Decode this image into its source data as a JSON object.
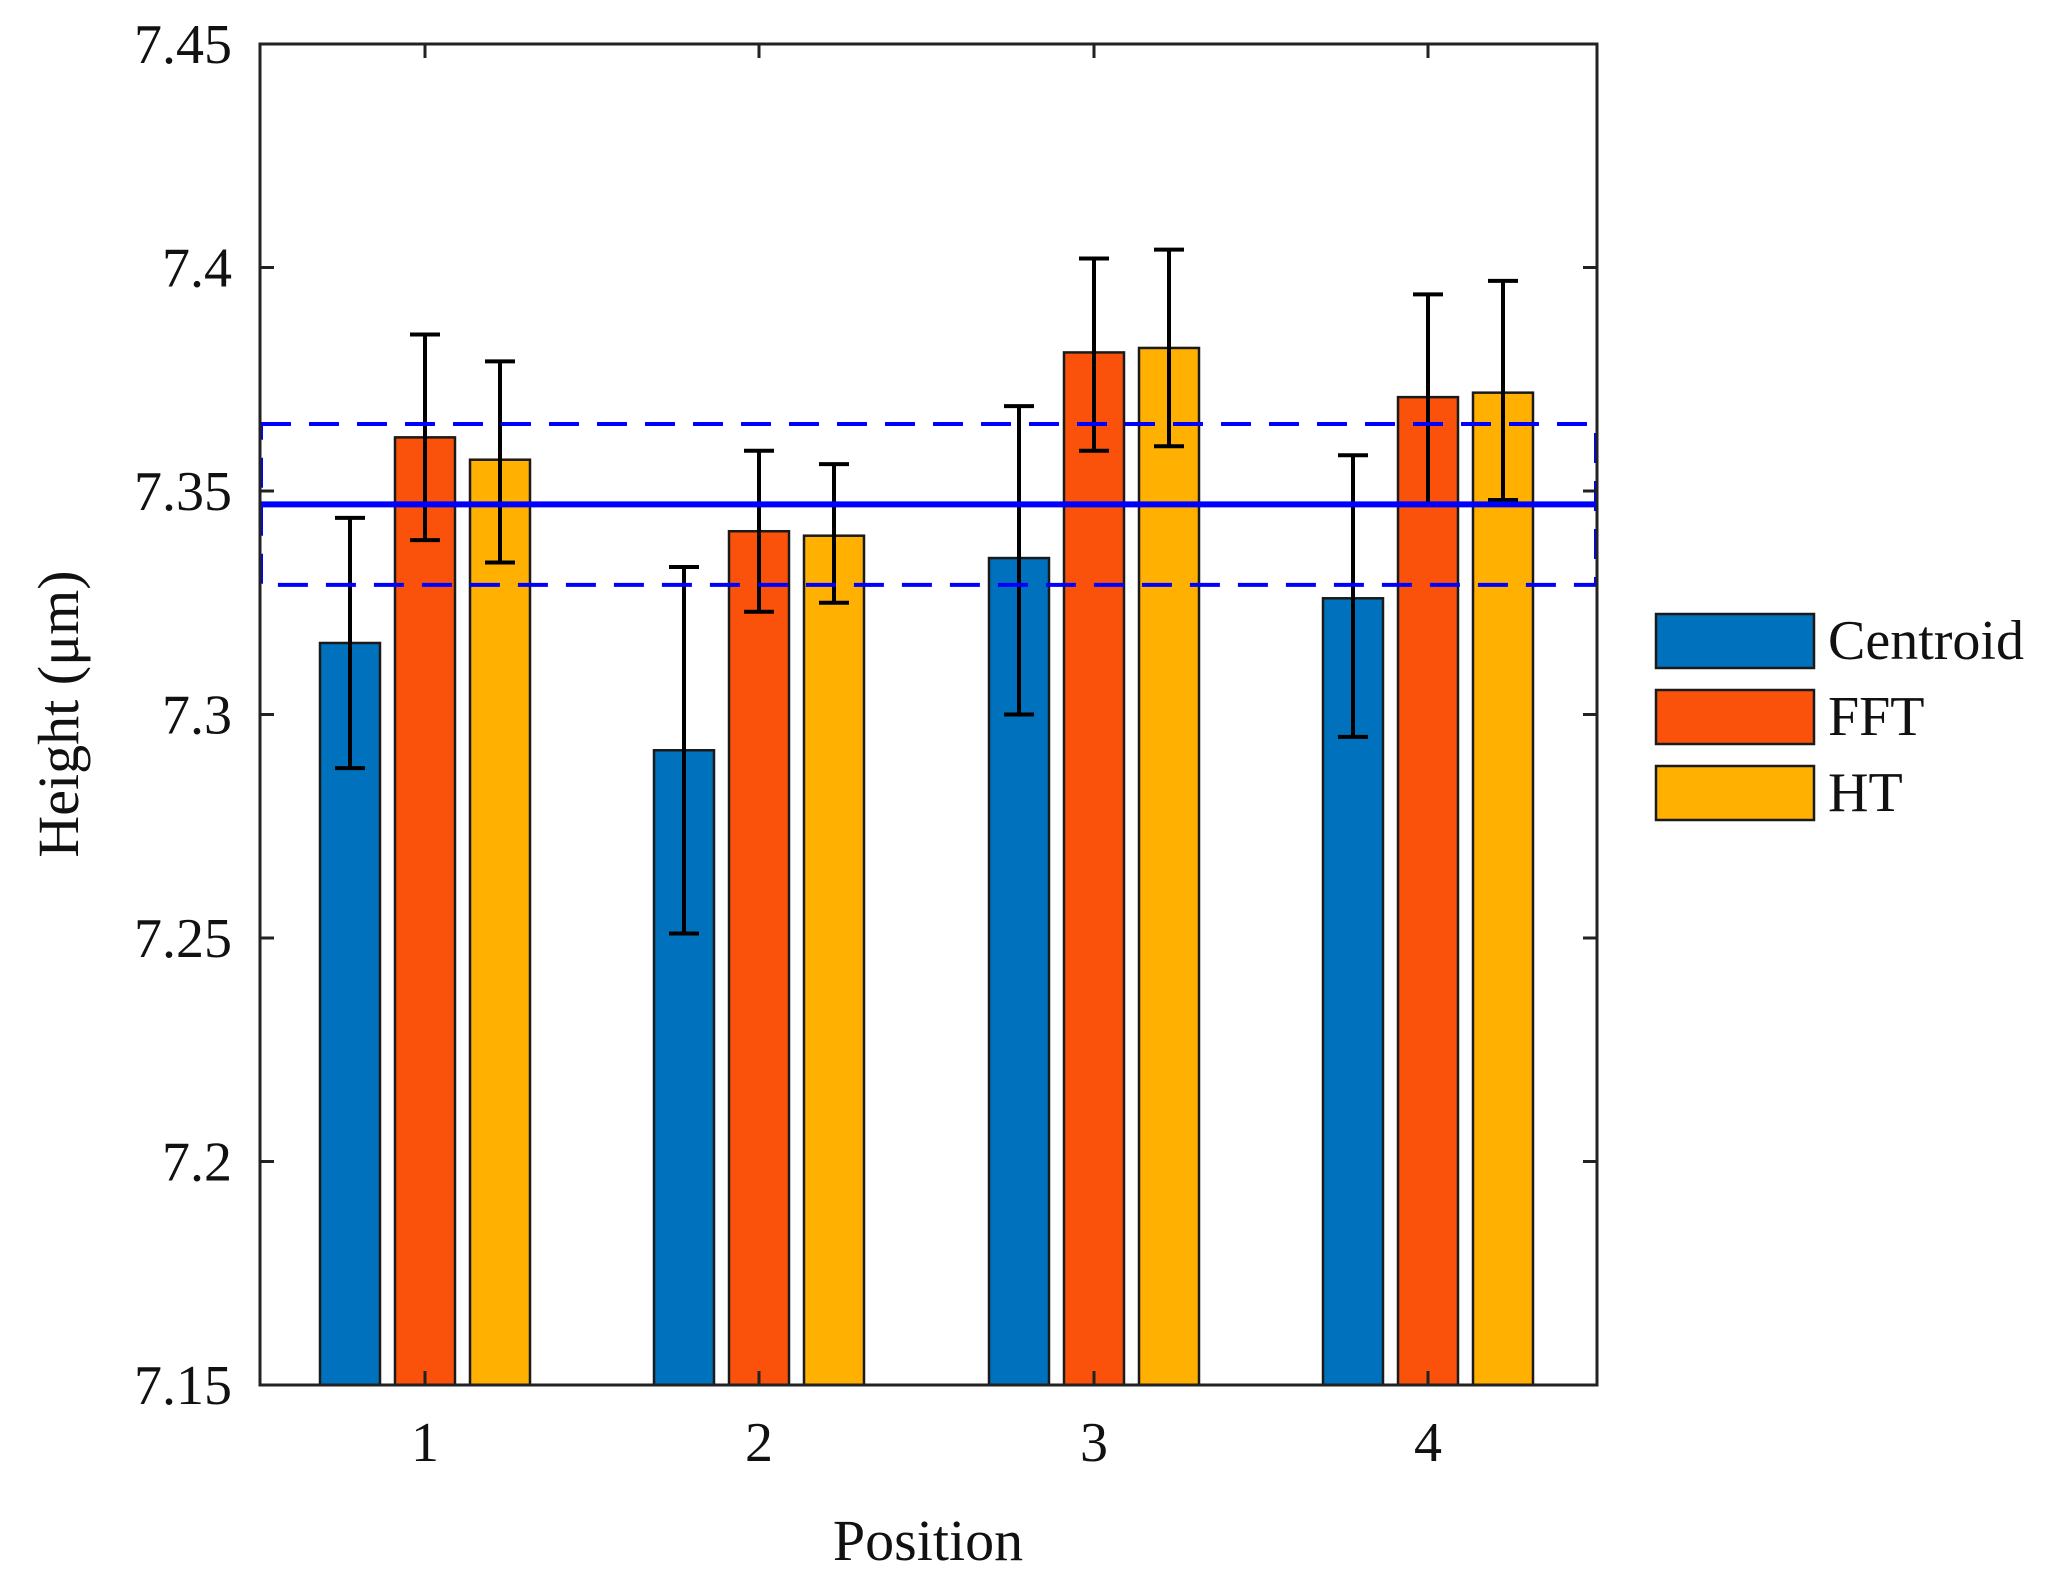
{
  "chart_data": {
    "type": "bar",
    "title": "",
    "xlabel": "Position",
    "ylabel": "Height (μm)",
    "ylim": [
      7.15,
      7.45
    ],
    "yticks": [
      7.15,
      7.2,
      7.25,
      7.3,
      7.35,
      7.4,
      7.45
    ],
    "ytick_labels": [
      "7.15",
      "7.2",
      "7.25",
      "7.3",
      "7.35",
      "7.4",
      "7.45"
    ],
    "categories": [
      "1",
      "2",
      "3",
      "4"
    ],
    "grid": false,
    "legend_position": "right",
    "series": [
      {
        "name": "Centroid",
        "color": "#0072BD",
        "values": [
          7.316,
          7.292,
          7.335,
          7.326
        ],
        "err_low": [
          7.288,
          7.251,
          7.3,
          7.295
        ],
        "err_high": [
          7.344,
          7.333,
          7.369,
          7.358
        ]
      },
      {
        "name": "FFT",
        "color": "#FA520A",
        "values": [
          7.362,
          7.341,
          7.381,
          7.371
        ],
        "err_low": [
          7.339,
          7.323,
          7.359,
          7.347
        ],
        "err_high": [
          7.385,
          7.359,
          7.402,
          7.394
        ]
      },
      {
        "name": "HT",
        "color": "#FFB000",
        "values": [
          7.357,
          7.34,
          7.382,
          7.372
        ],
        "err_low": [
          7.334,
          7.325,
          7.36,
          7.348
        ],
        "err_high": [
          7.379,
          7.356,
          7.404,
          7.397
        ]
      }
    ],
    "reference": {
      "mean": 7.347,
      "lower": 7.329,
      "upper": 7.365,
      "color": "#0000FF"
    }
  }
}
